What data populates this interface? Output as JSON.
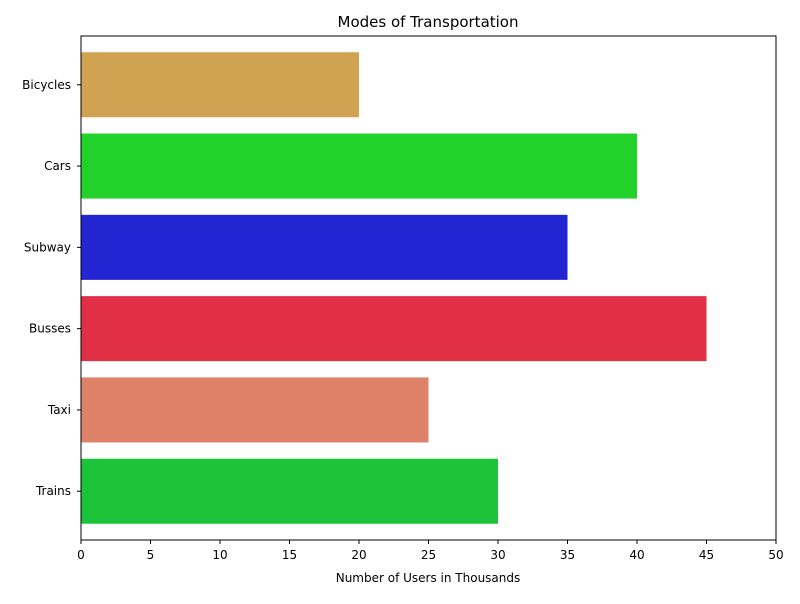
{
  "chart_data": {
    "type": "bar",
    "orientation": "horizontal",
    "title": "Modes of Transportation",
    "xlabel": "Number of Users in Thousands",
    "ylabel": "",
    "categories": [
      "Bicycles",
      "Cars",
      "Subway",
      "Busses",
      "Taxi",
      "Trains"
    ],
    "values": [
      20,
      40,
      35,
      45,
      25,
      30
    ],
    "colors": [
      "#cfa352",
      "#22d22b",
      "#2225d2",
      "#e12f46",
      "#dd8169",
      "#1dc43a"
    ],
    "xlim": [
      0,
      50
    ],
    "xticks": [
      0,
      5,
      10,
      15,
      20,
      25,
      30,
      35,
      40,
      45,
      50
    ],
    "grid": false,
    "legend": "none"
  }
}
